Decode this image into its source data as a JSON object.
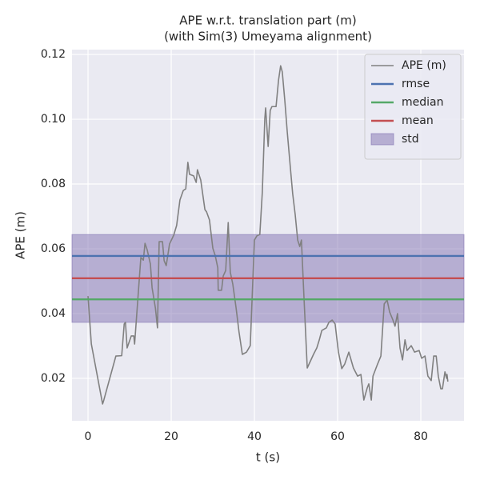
{
  "chart_data": {
    "type": "line",
    "title": [
      "APE w.r.t. translation part (m)",
      "(with Sim(3) Umeyama alignment)"
    ],
    "xlabel": "t (s)",
    "ylabel": "APE (m)",
    "xlim": [
      -3.85,
      90.38
    ],
    "ylim": [
      0.0069,
      0.1215
    ],
    "xticks": [
      0,
      20,
      40,
      60,
      80
    ],
    "yticks": [
      0.02,
      0.04,
      0.06,
      0.08,
      {
        "value": 0.1,
        "label": "0.10"
      },
      0.12
    ],
    "grid": true,
    "legend": "upper right",
    "series": [
      {
        "name": "APE (m)",
        "color": "#808080",
        "x": [
          0,
          0.8,
          3.5,
          3.8,
          6.7,
          8.1,
          8.7,
          9.0,
          9.4,
          10.4,
          11,
          11.2,
          12.7,
          13.3,
          13.7,
          14.2,
          15,
          15.4,
          16.2,
          16.7,
          17.1,
          17.9,
          18.3,
          18.8,
          19.6,
          20.6,
          21.3,
          22.1,
          22.9,
          23.5,
          24,
          24.4,
          25.4,
          26,
          26.3,
          27.1,
          28.1,
          28.5,
          29.2,
          30,
          30.6,
          31.2,
          31.3,
          32.1,
          32.5,
          33.1,
          33.7,
          34.2,
          34.8,
          35.6,
          36.3,
          37.1,
          38.1,
          39,
          40,
          40.6,
          41.3,
          41.9,
          42.5,
          42.7,
          43.3,
          43.8,
          44.2,
          45.2,
          45.8,
          46.3,
          46.7,
          47.3,
          47.9,
          48.7,
          49.2,
          49.8,
          50.4,
          50.9,
          51.3,
          51.9,
          52.7,
          54.2,
          55,
          55.6,
          56.2,
          57.3,
          57.9,
          58.7,
          59.4,
          60.2,
          61,
          61.7,
          62.7,
          63.8,
          64.8,
          65.6,
          66.3,
          67.1,
          67.5,
          68.1,
          68.5,
          69.6,
          70.4,
          71.2,
          71.9,
          72.5,
          73.3,
          73.8,
          74.4,
          75,
          75.6,
          76.2,
          76.7,
          77.7,
          78.5,
          79.6,
          80.2,
          81,
          81.7,
          82.5,
          83.1,
          83.7,
          84.2,
          84.8,
          85.2,
          85.8,
          86.2,
          86.3,
          86.5
        ],
        "values": [
          0.0454,
          0.0306,
          0.0121,
          0.0133,
          0.0269,
          0.027,
          0.0368,
          0.0373,
          0.0294,
          0.0331,
          0.0331,
          0.0306,
          0.0573,
          0.0565,
          0.0617,
          0.0598,
          0.0553,
          0.048,
          0.0417,
          0.0356,
          0.0622,
          0.0622,
          0.0563,
          0.0548,
          0.0615,
          0.0642,
          0.0672,
          0.0751,
          0.078,
          0.0785,
          0.0867,
          0.083,
          0.0825,
          0.0805,
          0.0844,
          0.0812,
          0.0721,
          0.0714,
          0.0689,
          0.0602,
          0.0578,
          0.0541,
          0.0472,
          0.0472,
          0.0516,
          0.0533,
          0.0681,
          0.0528,
          0.0491,
          0.0417,
          0.0343,
          0.0274,
          0.0281,
          0.0301,
          0.0627,
          0.064,
          0.0644,
          0.0775,
          0.1002,
          0.1035,
          0.0916,
          0.1027,
          0.1039,
          0.1039,
          0.1121,
          0.1165,
          0.1146,
          0.1059,
          0.096,
          0.0842,
          0.077,
          0.0706,
          0.0627,
          0.0607,
          0.0627,
          0.0454,
          0.0232,
          0.0274,
          0.0294,
          0.0319,
          0.0348,
          0.0356,
          0.0373,
          0.038,
          0.0368,
          0.0281,
          0.023,
          0.0244,
          0.0281,
          0.0232,
          0.0207,
          0.0212,
          0.0133,
          0.017,
          0.0183,
          0.0133,
          0.0207,
          0.0244,
          0.0269,
          0.043,
          0.0442,
          0.0405,
          0.038,
          0.0361,
          0.04,
          0.0294,
          0.0257,
          0.0319,
          0.0286,
          0.0301,
          0.0281,
          0.0286,
          0.0262,
          0.0269,
          0.0207,
          0.0193,
          0.0269,
          0.0269,
          0.0207,
          0.0168,
          0.0168,
          0.022,
          0.02,
          0.0212,
          0.019
        ]
      }
    ],
    "hlines": [
      {
        "name": "rmse",
        "color": "#4c72b0",
        "value": 0.0578
      },
      {
        "name": "median",
        "color": "#55a868",
        "value": 0.0444
      },
      {
        "name": "mean",
        "color": "#c44e52",
        "value": 0.0509
      }
    ],
    "bands": [
      {
        "name": "std",
        "color": "#8172b2",
        "values": [
          0.0373,
          0.0644
        ]
      }
    ]
  }
}
